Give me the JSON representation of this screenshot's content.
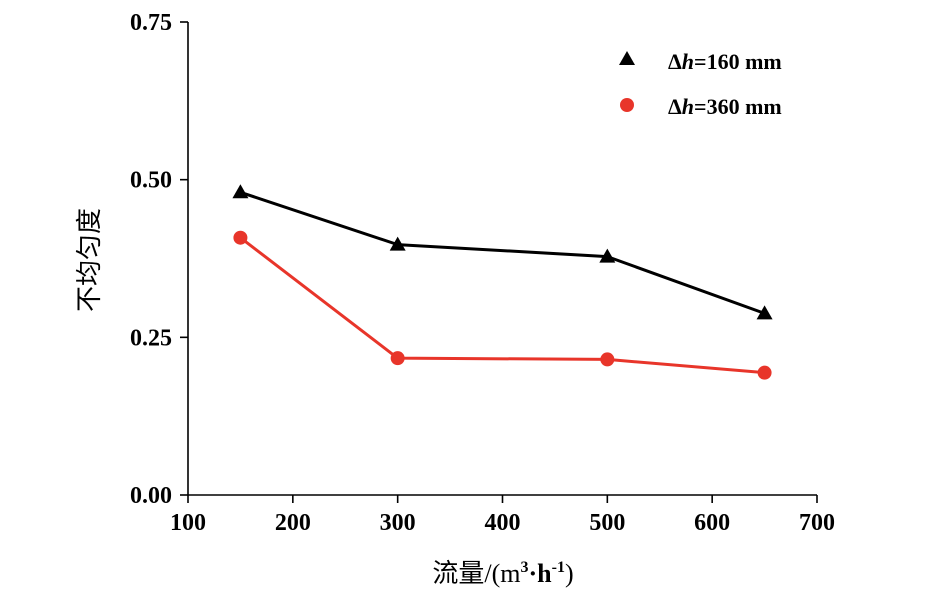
{
  "chart_data": {
    "type": "line",
    "title": "",
    "xlabel": {
      "prefix": "流量/(m",
      "sup1": "3",
      "mid": "·h",
      "sup2": "-1",
      "suffix": ")"
    },
    "ylabel": "不均匀度",
    "xlim": [
      100,
      700
    ],
    "ylim": [
      0,
      0.75
    ],
    "xticks": [
      100,
      200,
      300,
      400,
      500,
      600,
      700
    ],
    "xtick_labels": [
      "100",
      "200",
      "300",
      "400",
      "500",
      "600",
      "700"
    ],
    "yticks": [
      0,
      0.25,
      0.5,
      0.75
    ],
    "ytick_labels": [
      "0.00",
      "0.25",
      "0.50",
      "0.75"
    ],
    "legend_position": "top-right",
    "series": [
      {
        "name": "Δh=160 mm",
        "legend": {
          "delta": "Δ",
          "var": "h",
          "rest": "=160 mm"
        },
        "marker": "triangle",
        "color": "#000000",
        "x": [
          150,
          300,
          500,
          650
        ],
        "y": [
          0.48,
          0.397,
          0.378,
          0.288
        ]
      },
      {
        "name": "Δh=360 mm",
        "legend": {
          "delta": "Δ",
          "var": "h",
          "rest": "=360 mm"
        },
        "marker": "circle",
        "color": "#e8352a",
        "x": [
          150,
          300,
          500,
          650
        ],
        "y": [
          0.408,
          0.217,
          0.215,
          0.194
        ]
      }
    ]
  }
}
